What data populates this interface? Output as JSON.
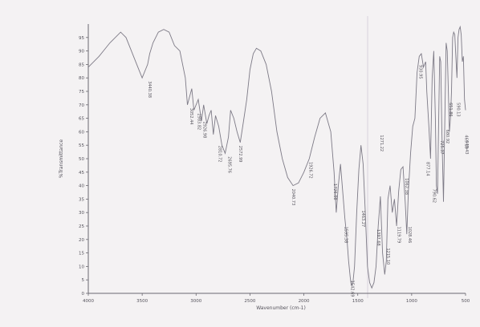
{
  "chart_data": {
    "type": "line",
    "title": "",
    "xlabel": "Wavenumber (cm-1)",
    "ylabel": "%Transmittance",
    "xlim": [
      4000,
      500
    ],
    "ylim": [
      0,
      100
    ],
    "x_ticks": [
      "4000",
      "3500",
      "3000",
      "2500",
      "2000",
      "1500",
      "1000",
      "500"
    ],
    "y_ticks": [
      "0",
      "5",
      "10",
      "15",
      "20",
      "25",
      "30",
      "35",
      "40",
      "45",
      "50",
      "55",
      "60",
      "65",
      "70",
      "75",
      "80",
      "85",
      "90",
      "95"
    ],
    "grid": false,
    "legend": "none",
    "line_color": "#7d7a86",
    "series": [
      {
        "x": [
          4000,
          3900,
          3800,
          3700,
          3650,
          3600,
          3550,
          3500,
          3450,
          3430,
          3400,
          3350,
          3300,
          3250,
          3200,
          3150,
          3100,
          3080,
          3040,
          3020,
          2980,
          2950,
          2930,
          2900,
          2880,
          2860,
          2840,
          2820,
          2790,
          2760,
          2730,
          2700,
          2680,
          2650,
          2620,
          2590,
          2560,
          2530,
          2500,
          2470,
          2440,
          2400,
          2350,
          2300,
          2250,
          2200,
          2150,
          2100,
          2050,
          2000,
          1950,
          1900,
          1850,
          1800,
          1750,
          1720,
          1700,
          1680,
          1660,
          1640,
          1620,
          1600,
          1585,
          1570,
          1560,
          1545,
          1530,
          1510,
          1490,
          1470,
          1450,
          1430,
          1410,
          1390,
          1370,
          1350,
          1330,
          1310,
          1290,
          1270,
          1250,
          1235,
          1220,
          1200,
          1180,
          1160,
          1140,
          1120,
          1100,
          1080,
          1060,
          1045,
          1030,
          1010,
          990,
          970,
          950,
          930,
          910,
          890,
          870,
          860,
          840,
          825,
          810,
          795,
          780,
          770,
          760,
          750,
          740,
          730,
          720,
          705,
          690,
          680,
          670,
          660,
          650,
          640,
          630,
          620,
          610,
          600,
          590,
          580,
          570,
          560,
          550,
          540,
          530,
          520,
          510,
          500
        ],
        "y": [
          84,
          88,
          93,
          97,
          95,
          90,
          85,
          80,
          85,
          89,
          93,
          97,
          98,
          97,
          92,
          90,
          80,
          70,
          76,
          68,
          72,
          64,
          70,
          63,
          66,
          68,
          59,
          66,
          62,
          55,
          52,
          58,
          68,
          65,
          60,
          56,
          64,
          72,
          83,
          89,
          91,
          90,
          85,
          75,
          60,
          50,
          43,
          40,
          41,
          45,
          50,
          58,
          65,
          67,
          60,
          45,
          30,
          40,
          48,
          38,
          28,
          20,
          12,
          6,
          3,
          4,
          10,
          30,
          46,
          55,
          48,
          30,
          10,
          4,
          2,
          4,
          10,
          25,
          36,
          15,
          7,
          12,
          35,
          40,
          30,
          35,
          25,
          38,
          46,
          47,
          34,
          22,
          38,
          52,
          62,
          65,
          82,
          88,
          89,
          84,
          86,
          75,
          62,
          50,
          80,
          90,
          65,
          40,
          37,
          62,
          88,
          86,
          60,
          34,
          70,
          93,
          90,
          76,
          60,
          65,
          75,
          95,
          97,
          96,
          88,
          80,
          95,
          98,
          99,
          96,
          86,
          88,
          72,
          68
        ]
      }
    ],
    "peak_labels": [
      {
        "x": 3440,
        "y": 80,
        "text": "3440.38"
      },
      {
        "x": 3055,
        "y": 70,
        "text": "3052.44"
      },
      {
        "x": 2985,
        "y": 68,
        "text": "2983.82"
      },
      {
        "x": 2930,
        "y": 65,
        "text": "2926.98"
      },
      {
        "x": 2790,
        "y": 56,
        "text": "2810.72"
      },
      {
        "x": 2700,
        "y": 52,
        "text": "2695.76"
      },
      {
        "x": 2600,
        "y": 56,
        "text": "2572.99"
      },
      {
        "x": 2110,
        "y": 40,
        "text": "2040.73"
      },
      {
        "x": 1950,
        "y": 50,
        "text": "1926.72"
      },
      {
        "x": 1720,
        "y": 42,
        "text": "1726.08"
      },
      {
        "x": 1620,
        "y": 26,
        "text": "1595.38"
      },
      {
        "x": 1560,
        "y": 6,
        "text": "1542.69"
      },
      {
        "x": 1460,
        "y": 32,
        "text": "1463.27"
      },
      {
        "x": 1320,
        "y": 25,
        "text": "1397.68"
      },
      {
        "x": 1290,
        "y": 60,
        "text": "1271.22"
      },
      {
        "x": 1230,
        "y": 18,
        "text": "1215.10"
      },
      {
        "x": 1130,
        "y": 26,
        "text": "1119.79"
      },
      {
        "x": 1060,
        "y": 44,
        "text": "1062.38"
      },
      {
        "x": 1030,
        "y": 26,
        "text": "1028.46"
      },
      {
        "x": 930,
        "y": 86,
        "text": "930.95"
      },
      {
        "x": 860,
        "y": 50,
        "text": "877.14"
      },
      {
        "x": 800,
        "y": 40,
        "text": "790.62"
      },
      {
        "x": 730,
        "y": 58,
        "text": "725.37"
      },
      {
        "x": 680,
        "y": 62,
        "text": "680.92"
      },
      {
        "x": 650,
        "y": 72,
        "text": "651.86"
      },
      {
        "x": 580,
        "y": 72,
        "text": "590.13"
      },
      {
        "x": 505,
        "y": 60,
        "text": "469.19"
      },
      {
        "x": 500,
        "y": 58,
        "text": "449.43"
      }
    ]
  }
}
